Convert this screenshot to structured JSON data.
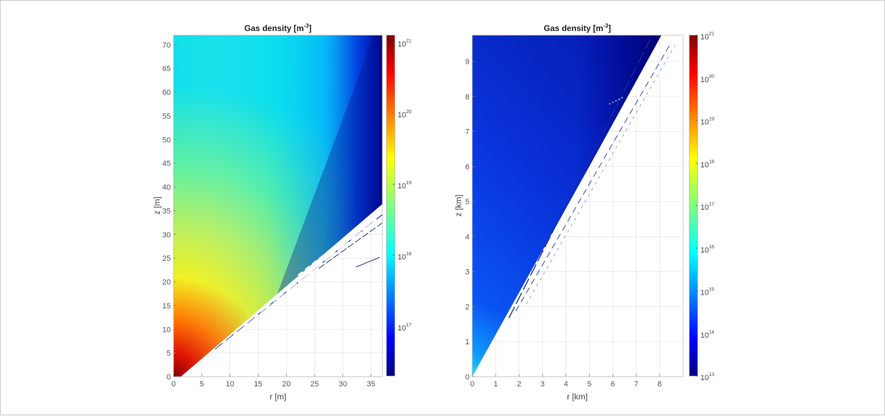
{
  "chart_data": [
    {
      "type": "heatmap",
      "title": "Gas density [m",
      "title_exponent": "-3",
      "title_suffix": "]",
      "xlabel": "r [m]",
      "ylabel": "z [m]",
      "xlim": [
        0,
        37
      ],
      "ylim": [
        0,
        72
      ],
      "xticks": [
        "0",
        "5",
        "10",
        "15",
        "20",
        "25",
        "30",
        "35"
      ],
      "xtick_values": [
        0,
        5,
        10,
        15,
        20,
        25,
        30,
        35
      ],
      "yticks": [
        "0",
        "5",
        "10",
        "15",
        "20",
        "25",
        "30",
        "35",
        "40",
        "45",
        "50",
        "55",
        "60",
        "65",
        "70"
      ],
      "ytick_values": [
        0,
        5,
        10,
        15,
        20,
        25,
        30,
        35,
        40,
        45,
        50,
        55,
        60,
        65,
        70
      ],
      "colorbar": {
        "scale": "log",
        "range_exponent": [
          16.3,
          21.1
        ],
        "tick_base": "10",
        "tick_exponents": [
          "17",
          "18",
          "19",
          "20",
          "21"
        ],
        "tick_values": [
          17,
          18,
          19,
          20,
          21
        ],
        "colormap": "jet"
      },
      "grid": true,
      "plume_boundary_slope_z_per_r": 0.96
    },
    {
      "type": "heatmap",
      "title": "Gas density [m",
      "title_exponent": "-3",
      "title_suffix": "]",
      "xlabel": "r [km]",
      "ylabel": "z [km]",
      "xlim": [
        0,
        9
      ],
      "ylim": [
        0,
        9.75
      ],
      "xticks": [
        "0",
        "1",
        "2",
        "3",
        "4",
        "5",
        "6",
        "7",
        "8"
      ],
      "xtick_values": [
        0,
        1,
        2,
        3,
        4,
        5,
        6,
        7,
        8
      ],
      "yticks": [
        "0",
        "1",
        "2",
        "3",
        "4",
        "5",
        "6",
        "7",
        "8",
        "9"
      ],
      "ytick_values": [
        0,
        1,
        2,
        3,
        4,
        5,
        6,
        7,
        8,
        9
      ],
      "colorbar": {
        "scale": "log",
        "range_exponent": [
          13,
          21
        ],
        "tick_base": "10",
        "tick_exponents": [
          "13",
          "14",
          "15",
          "16",
          "17",
          "18",
          "19",
          "20",
          "21"
        ],
        "tick_values": [
          13,
          14,
          15,
          16,
          17,
          18,
          19,
          20,
          21
        ],
        "colormap": "jet"
      },
      "grid": true,
      "plume_boundary_slope_z_per_r": 1.2
    }
  ]
}
